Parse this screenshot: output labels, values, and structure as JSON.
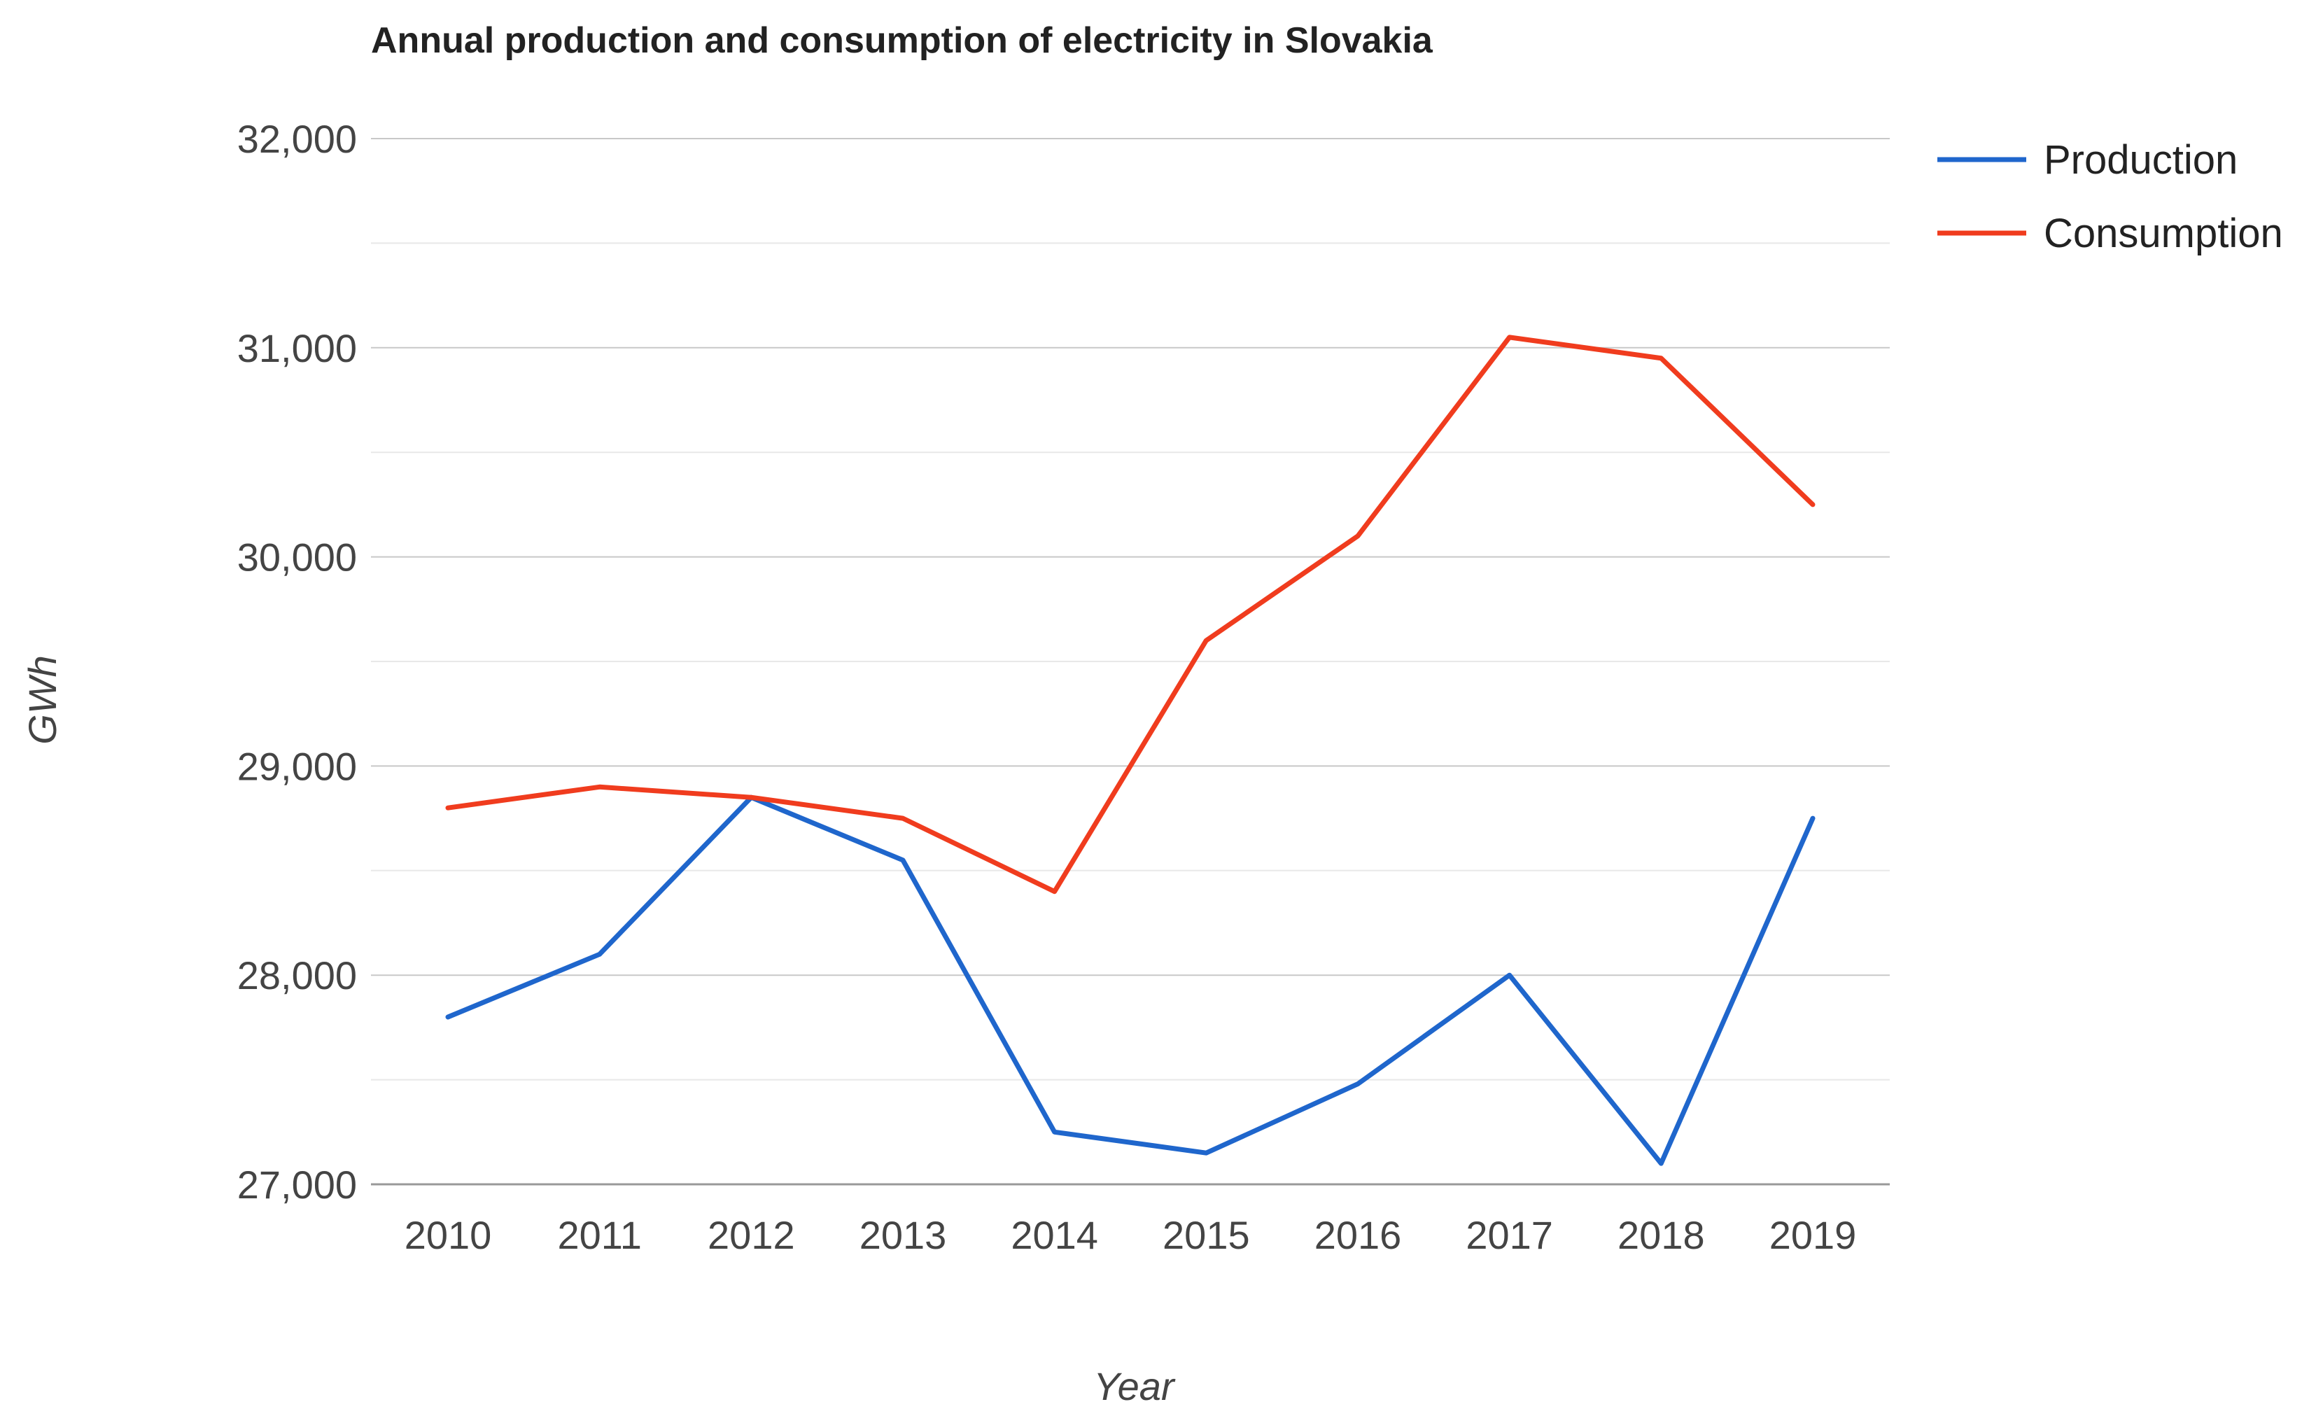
{
  "chart_data": {
    "type": "line",
    "title": "Annual production and consumption of electricity in Slovakia",
    "xlabel": "Year",
    "ylabel": "GWh",
    "categories": [
      "2010",
      "2011",
      "2012",
      "2013",
      "2014",
      "2015",
      "2016",
      "2017",
      "2018",
      "2019"
    ],
    "ylim": [
      27000,
      32000
    ],
    "yticks": [
      27000,
      28000,
      29000,
      30000,
      31000,
      32000
    ],
    "ytick_labels": [
      "27,000",
      "28,000",
      "29,000",
      "30,000",
      "31,000",
      "32,000"
    ],
    "minor_grid_step": 500,
    "grid": true,
    "legend_position": "right",
    "series": [
      {
        "name": "Production",
        "color": "#1f66cc",
        "values": [
          27800,
          28100,
          28850,
          28550,
          27250,
          27150,
          27480,
          28000,
          27100,
          28750
        ]
      },
      {
        "name": "Consumption",
        "color": "#f03c1e",
        "values": [
          28800,
          28900,
          28850,
          28750,
          28400,
          29600,
          30100,
          31050,
          30950,
          30250
        ]
      }
    ]
  }
}
